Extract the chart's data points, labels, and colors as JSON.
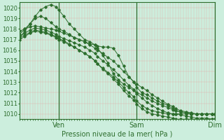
{
  "xlabel": "Pression niveau de la mer( hPa )",
  "bg_color": "#cceedd",
  "grid_color": "#e8a0a0",
  "line_color": "#2d6e2d",
  "vline_color": "#2d6e2d",
  "ylim": [
    1009.5,
    1020.5
  ],
  "yticks": [
    1010,
    1011,
    1012,
    1013,
    1014,
    1015,
    1016,
    1017,
    1018,
    1019,
    1020
  ],
  "xtick_labels": [
    "",
    "Ven",
    "",
    "Sam",
    "",
    "Dim"
  ],
  "xtick_positions": [
    0,
    30,
    60,
    90,
    120,
    150
  ],
  "x_total": 150,
  "series": [
    {
      "x": [
        0,
        4,
        8,
        12,
        16,
        20,
        24,
        28,
        30,
        34,
        38,
        42,
        46,
        50,
        54,
        58,
        60,
        64,
        68,
        72,
        76,
        80,
        84,
        88,
        90,
        94,
        98,
        102,
        106,
        110,
        114,
        118,
        120,
        124,
        128,
        132,
        136,
        140,
        144,
        148,
        150
      ],
      "y": [
        1017.2,
        1017.8,
        1018.5,
        1019.2,
        1019.8,
        1020.1,
        1020.3,
        1020.1,
        1019.8,
        1019.2,
        1018.5,
        1018.0,
        1017.5,
        1017.0,
        1016.8,
        1016.5,
        1016.2,
        1015.5,
        1014.8,
        1013.8,
        1013.2,
        1012.8,
        1012.5,
        1012.2,
        1012.0,
        1011.8,
        1011.5,
        1011.2,
        1011.0,
        1010.8,
        1010.6,
        1010.4,
        1010.3,
        1010.2,
        1010.1,
        1010.0,
        1010.0,
        1010.0,
        1010.0,
        1010.0,
        1010.0
      ]
    },
    {
      "x": [
        0,
        4,
        8,
        12,
        16,
        20,
        24,
        28,
        30,
        34,
        38,
        42,
        46,
        50,
        54,
        58,
        60,
        64,
        68,
        72,
        76,
        80,
        84,
        88,
        90,
        94,
        98,
        102,
        106,
        110,
        114,
        118,
        120,
        124,
        128,
        132,
        136,
        140,
        144,
        148,
        150
      ],
      "y": [
        1017.5,
        1018.0,
        1018.5,
        1019.0,
        1019.2,
        1019.0,
        1018.6,
        1018.2,
        1018.0,
        1017.8,
        1017.5,
        1017.2,
        1017.0,
        1016.8,
        1016.6,
        1016.5,
        1016.4,
        1016.3,
        1016.3,
        1016.2,
        1015.5,
        1014.5,
        1013.5,
        1013.0,
        1012.5,
        1012.0,
        1011.8,
        1011.5,
        1011.2,
        1011.0,
        1010.8,
        1010.5,
        1010.3,
        1010.2,
        1010.1,
        1010.0,
        1010.0,
        1010.0,
        1010.0,
        1010.0,
        1010.0
      ]
    },
    {
      "x": [
        0,
        4,
        8,
        12,
        16,
        20,
        24,
        28,
        30,
        34,
        38,
        42,
        46,
        50,
        54,
        58,
        60,
        64,
        68,
        72,
        76,
        80,
        84,
        88,
        90,
        94,
        98,
        102,
        106,
        110,
        114,
        118,
        120,
        124,
        128,
        132,
        136,
        140,
        144,
        148,
        150
      ],
      "y": [
        1017.8,
        1018.0,
        1018.2,
        1018.3,
        1018.2,
        1018.1,
        1018.0,
        1017.9,
        1017.8,
        1017.6,
        1017.4,
        1017.2,
        1017.0,
        1016.8,
        1016.5,
        1016.2,
        1016.0,
        1015.7,
        1015.3,
        1015.0,
        1014.5,
        1014.0,
        1013.5,
        1013.0,
        1012.8,
        1012.5,
        1012.2,
        1011.8,
        1011.5,
        1011.2,
        1010.9,
        1010.7,
        1010.5,
        1010.3,
        1010.2,
        1010.1,
        1010.0,
        1010.0,
        1010.0,
        1010.0,
        1010.0
      ]
    },
    {
      "x": [
        0,
        4,
        8,
        12,
        16,
        20,
        24,
        28,
        30,
        34,
        38,
        42,
        46,
        50,
        54,
        58,
        60,
        64,
        68,
        72,
        76,
        80,
        84,
        88,
        90,
        94,
        98,
        102,
        106,
        110,
        114,
        118,
        120,
        124,
        128,
        132,
        136,
        140,
        144,
        148,
        150
      ],
      "y": [
        1017.3,
        1017.6,
        1017.9,
        1018.1,
        1018.0,
        1017.9,
        1017.7,
        1017.5,
        1017.3,
        1017.1,
        1016.9,
        1016.7,
        1016.5,
        1016.3,
        1016.0,
        1015.7,
        1015.4,
        1015.0,
        1014.6,
        1014.2,
        1013.7,
        1013.2,
        1012.7,
        1012.3,
        1011.9,
        1011.5,
        1011.1,
        1010.8,
        1010.5,
        1010.3,
        1010.1,
        1010.0,
        1010.0,
        1010.0,
        1010.0,
        1010.0,
        1010.0,
        1010.0,
        1010.0,
        1010.0,
        1010.0
      ]
    },
    {
      "x": [
        0,
        4,
        8,
        12,
        16,
        20,
        24,
        28,
        30,
        34,
        38,
        42,
        46,
        50,
        54,
        58,
        60,
        64,
        68,
        72,
        76,
        80,
        84,
        88,
        90,
        94,
        98,
        102,
        106,
        110,
        114,
        118,
        120,
        124,
        128,
        132,
        136,
        140,
        144,
        148,
        150
      ],
      "y": [
        1017.0,
        1017.3,
        1017.6,
        1017.8,
        1017.7,
        1017.6,
        1017.4,
        1017.2,
        1017.0,
        1016.8,
        1016.5,
        1016.3,
        1016.0,
        1015.7,
        1015.4,
        1015.0,
        1014.7,
        1014.3,
        1013.9,
        1013.5,
        1013.0,
        1012.5,
        1012.0,
        1011.6,
        1011.2,
        1010.8,
        1010.5,
        1010.3,
        1010.2,
        1010.1,
        1010.0,
        1010.0,
        1010.0,
        1009.9,
        1009.8,
        1009.7,
        1009.6,
        1009.6,
        1009.6,
        1009.5,
        1009.5
      ]
    },
    {
      "x": [
        0,
        4,
        8,
        12,
        16,
        20,
        24,
        28,
        30,
        34,
        38,
        42,
        46,
        50,
        54,
        58,
        60,
        64,
        68,
        72,
        76,
        80,
        84,
        88,
        90,
        94,
        98,
        102,
        106,
        110,
        114,
        118,
        120,
        124,
        128,
        132,
        136,
        140,
        144,
        148,
        150
      ],
      "y": [
        1017.2,
        1017.4,
        1017.7,
        1017.9,
        1017.8,
        1017.7,
        1017.5,
        1017.3,
        1017.1,
        1016.9,
        1016.6,
        1016.3,
        1016.0,
        1015.7,
        1015.4,
        1015.0,
        1014.7,
        1014.2,
        1013.8,
        1013.3,
        1012.8,
        1012.2,
        1011.7,
        1011.3,
        1010.9,
        1010.5,
        1010.2,
        1010.0,
        1009.9,
        1009.8,
        1009.7,
        1009.6,
        1009.5,
        1009.5,
        1009.5,
        1009.5,
        1009.5,
        1009.5,
        1009.5,
        1009.5,
        1009.5
      ]
    }
  ],
  "vline_positions": [
    30,
    90,
    150
  ],
  "xlabel_fontsize": 7,
  "ytick_fontsize": 6,
  "xtick_fontsize": 7
}
